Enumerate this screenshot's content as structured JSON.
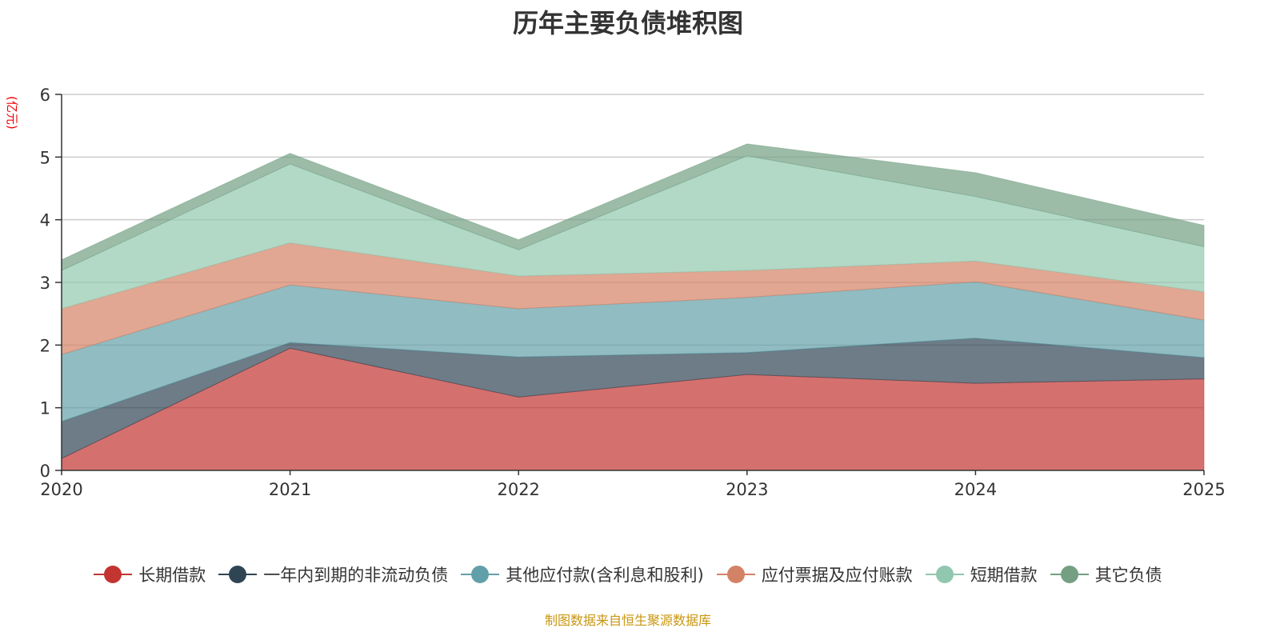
{
  "title": "历年主要负债堆积图",
  "unit_label": "(亿元)",
  "source": "制图数据来自恒生聚源数据库",
  "chart_data": {
    "type": "area",
    "stacked": true,
    "title": "历年主要负债堆积图",
    "ylabel": "(亿元)",
    "ylim": [
      0,
      6
    ],
    "yticks": [
      "0",
      "1",
      "2",
      "3",
      "4",
      "5",
      "6"
    ],
    "categories": [
      "2020",
      "2021",
      "2022",
      "2023",
      "2024",
      "2025"
    ],
    "grid": true,
    "legend_position": "bottom",
    "series": [
      {
        "name": "长期借款",
        "color": "#c23531",
        "values": [
          0.19,
          1.95,
          1.17,
          1.53,
          1.39,
          1.46
        ]
      },
      {
        "name": "一年内到期的非流动负债",
        "color": "#2f4554",
        "values": [
          0.59,
          0.09,
          0.64,
          0.35,
          0.72,
          0.34
        ]
      },
      {
        "name": "其他应付款(含利息和股利)",
        "color": "#61a0a8",
        "values": [
          1.07,
          0.92,
          0.77,
          0.88,
          0.9,
          0.6
        ]
      },
      {
        "name": "应付票据及应付账款",
        "color": "#d48265",
        "values": [
          0.73,
          0.67,
          0.52,
          0.43,
          0.33,
          0.45
        ]
      },
      {
        "name": "短期借款",
        "color": "#91c7ae",
        "values": [
          0.61,
          1.26,
          0.42,
          1.83,
          1.03,
          0.72
        ]
      },
      {
        "name": "其它负债",
        "color": "#749f83",
        "values": [
          0.17,
          0.17,
          0.16,
          0.19,
          0.38,
          0.34
        ]
      }
    ]
  }
}
